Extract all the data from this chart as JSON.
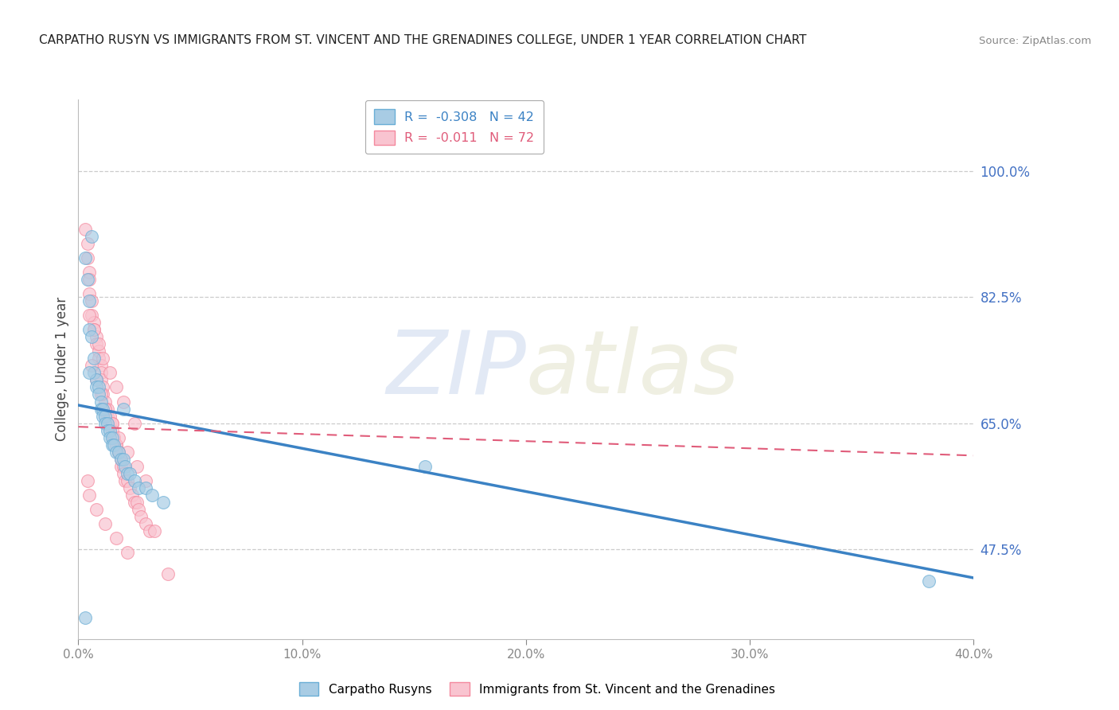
{
  "title": "CARPATHO RUSYN VS IMMIGRANTS FROM ST. VINCENT AND THE GRENADINES COLLEGE, UNDER 1 YEAR CORRELATION CHART",
  "source": "Source: ZipAtlas.com",
  "ylabel": "College, Under 1 year",
  "legend_labels": [
    "Carpatho Rusyns",
    "Immigrants from St. Vincent and the Grenadines"
  ],
  "R_blue": -0.308,
  "N_blue": 42,
  "R_pink": -0.011,
  "N_pink": 72,
  "blue_color": "#a8cce4",
  "pink_color": "#f9c4d0",
  "blue_edge_color": "#6aaed6",
  "pink_edge_color": "#f4899e",
  "trend_blue_color": "#3b82c4",
  "trend_pink_color": "#e05c7a",
  "xlim": [
    0.0,
    0.4
  ],
  "ylim": [
    0.35,
    1.1
  ],
  "right_ytick_vals": [
    0.475,
    0.65,
    0.825,
    1.0
  ],
  "right_yticklabels": [
    "47.5%",
    "65.0%",
    "82.5%",
    "100.0%"
  ],
  "grid_ytick_vals": [
    0.475,
    0.65,
    0.825,
    1.0
  ],
  "xticks": [
    0.0,
    0.1,
    0.2,
    0.3,
    0.4
  ],
  "xticklabels": [
    "0.0%",
    "10.0%",
    "20.0%",
    "30.0%",
    "40.0%"
  ],
  "grid_color": "#cccccc",
  "bg_color": "#ffffff",
  "title_color": "#222222",
  "source_color": "#888888",
  "axis_label_color": "#444444",
  "right_axis_color": "#4472c4",
  "bottom_axis_color": "#888888",
  "blue_scatter_x": [
    0.003,
    0.004,
    0.005,
    0.005,
    0.006,
    0.007,
    0.007,
    0.008,
    0.008,
    0.009,
    0.009,
    0.01,
    0.01,
    0.011,
    0.011,
    0.012,
    0.012,
    0.013,
    0.013,
    0.014,
    0.014,
    0.015,
    0.015,
    0.016,
    0.017,
    0.018,
    0.019,
    0.02,
    0.021,
    0.022,
    0.023,
    0.025,
    0.027,
    0.03,
    0.033,
    0.038,
    0.005,
    0.02,
    0.155,
    0.38,
    0.006,
    0.003
  ],
  "blue_scatter_y": [
    0.88,
    0.85,
    0.82,
    0.78,
    0.77,
    0.74,
    0.72,
    0.71,
    0.7,
    0.7,
    0.69,
    0.68,
    0.67,
    0.67,
    0.66,
    0.66,
    0.65,
    0.65,
    0.64,
    0.64,
    0.63,
    0.63,
    0.62,
    0.62,
    0.61,
    0.61,
    0.6,
    0.6,
    0.59,
    0.58,
    0.58,
    0.57,
    0.56,
    0.56,
    0.55,
    0.54,
    0.72,
    0.67,
    0.59,
    0.43,
    0.91,
    0.38
  ],
  "pink_scatter_x": [
    0.003,
    0.004,
    0.004,
    0.005,
    0.005,
    0.005,
    0.006,
    0.006,
    0.007,
    0.007,
    0.008,
    0.008,
    0.009,
    0.009,
    0.01,
    0.01,
    0.01,
    0.011,
    0.011,
    0.012,
    0.012,
    0.013,
    0.013,
    0.014,
    0.014,
    0.015,
    0.015,
    0.016,
    0.016,
    0.017,
    0.017,
    0.018,
    0.018,
    0.019,
    0.019,
    0.02,
    0.02,
    0.021,
    0.022,
    0.023,
    0.024,
    0.025,
    0.026,
    0.027,
    0.028,
    0.03,
    0.032,
    0.034,
    0.006,
    0.008,
    0.01,
    0.012,
    0.015,
    0.018,
    0.022,
    0.026,
    0.03,
    0.005,
    0.007,
    0.009,
    0.011,
    0.014,
    0.017,
    0.02,
    0.025,
    0.005,
    0.008,
    0.012,
    0.017,
    0.022,
    0.004,
    0.04
  ],
  "pink_scatter_y": [
    0.92,
    0.9,
    0.88,
    0.86,
    0.85,
    0.83,
    0.82,
    0.8,
    0.79,
    0.78,
    0.77,
    0.76,
    0.75,
    0.74,
    0.73,
    0.72,
    0.71,
    0.7,
    0.69,
    0.68,
    0.67,
    0.67,
    0.66,
    0.66,
    0.65,
    0.65,
    0.64,
    0.63,
    0.63,
    0.62,
    0.62,
    0.61,
    0.61,
    0.6,
    0.59,
    0.59,
    0.58,
    0.57,
    0.57,
    0.56,
    0.55,
    0.54,
    0.54,
    0.53,
    0.52,
    0.51,
    0.5,
    0.5,
    0.73,
    0.71,
    0.69,
    0.67,
    0.65,
    0.63,
    0.61,
    0.59,
    0.57,
    0.8,
    0.78,
    0.76,
    0.74,
    0.72,
    0.7,
    0.68,
    0.65,
    0.55,
    0.53,
    0.51,
    0.49,
    0.47,
    0.57,
    0.44
  ],
  "blue_trend_x": [
    0.0,
    0.4
  ],
  "blue_trend_y": [
    0.675,
    0.435
  ],
  "pink_trend_x": [
    0.0,
    0.4
  ],
  "pink_trend_y": [
    0.645,
    0.605
  ]
}
